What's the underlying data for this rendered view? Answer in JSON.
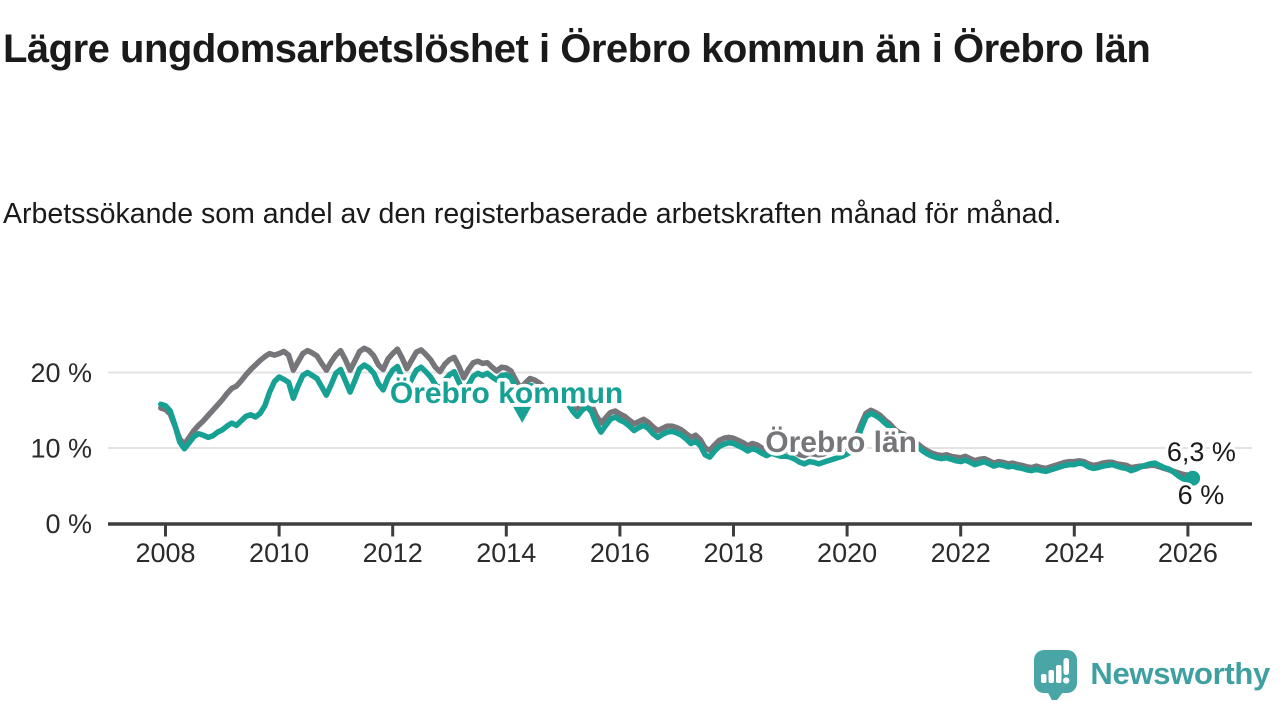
{
  "header": {
    "title": "Lägre ungdomsarbetslöshet i Örebro kommun än i Örebro län",
    "subtitle": "Arbetssökande som andel av den registerbaserade arbetskraften månad för månad."
  },
  "footer": {
    "brand": "Newsworthy",
    "brand_color": "#3fa0a1",
    "logo_color": "#4aa6a6"
  },
  "chart_data": {
    "type": "line",
    "title": "Lägre ungdomsarbetslöshet i Örebro kommun än i Örebro län",
    "xlabel": "",
    "ylabel": "Arbetssökande som andel av den registerbaserade arbetskraften",
    "grid": "horizontal-only",
    "legend": "inline-labels",
    "xlim": [
      2007.0,
      2027.1
    ],
    "ylim": [
      0,
      26.5
    ],
    "xticks": [
      2008,
      2010,
      2012,
      2014,
      2016,
      2018,
      2020,
      2022,
      2024,
      2026
    ],
    "yticks": [
      {
        "value": 0,
        "label": "0 %"
      },
      {
        "value": 10,
        "label": "10 %"
      },
      {
        "value": 20,
        "label": "20 %"
      }
    ],
    "x_start": 2007.9167,
    "x_step": 0.083333,
    "series": [
      {
        "name": "Örebro län",
        "color": "#76767a",
        "end_dot": false,
        "values": [
          15.3,
          15.1,
          14.5,
          12.9,
          11.2,
          10.5,
          11.4,
          12.3,
          13.0,
          13.6,
          14.3,
          15.0,
          15.7,
          16.4,
          17.2,
          17.9,
          18.2,
          18.9,
          19.7,
          20.4,
          21.0,
          21.6,
          22.1,
          22.5,
          22.3,
          22.5,
          22.8,
          22.3,
          20.3,
          21.4,
          22.5,
          22.9,
          22.6,
          22.2,
          21.2,
          20.3,
          21.4,
          22.3,
          22.9,
          21.7,
          20.3,
          21.5,
          22.8,
          23.2,
          22.9,
          22.2,
          21.0,
          20.4,
          21.8,
          22.5,
          23.1,
          21.9,
          20.5,
          21.6,
          22.7,
          23.0,
          22.4,
          21.7,
          20.7,
          20.1,
          21.1,
          21.7,
          22.0,
          20.8,
          19.3,
          20.4,
          21.3,
          21.5,
          21.2,
          21.3,
          20.7,
          20.2,
          20.7,
          20.6,
          20.2,
          19.0,
          17.9,
          18.6,
          19.2,
          19.0,
          18.6,
          18.1,
          17.7,
          17.3,
          17.4,
          17.1,
          16.7,
          15.8,
          15.2,
          15.9,
          16.3,
          15.7,
          14.3,
          13.3,
          14.0,
          14.7,
          14.9,
          14.5,
          14.2,
          13.7,
          13.2,
          13.5,
          13.8,
          13.4,
          12.8,
          12.3,
          12.6,
          12.9,
          12.9,
          12.7,
          12.4,
          11.9,
          11.4,
          11.7,
          11.1,
          10.0,
          9.7,
          10.4,
          11.0,
          11.3,
          11.4,
          11.3,
          11.0,
          10.7,
          10.3,
          10.6,
          10.4,
          10.0,
          9.7,
          10.0,
          9.8,
          9.7,
          9.7,
          9.6,
          9.4,
          9.1,
          9.0,
          9.3,
          9.2,
          9.1,
          9.2,
          9.4,
          9.5,
          9.7,
          9.9,
          10.1,
          10.5,
          11.6,
          13.2,
          14.6,
          15.0,
          14.7,
          14.3,
          13.7,
          13.2,
          12.5,
          12.0,
          11.8,
          11.4,
          10.9,
          10.5,
          10.0,
          9.6,
          9.3,
          9.1,
          9.0,
          9.1,
          8.9,
          8.8,
          8.7,
          8.9,
          8.6,
          8.3,
          8.5,
          8.6,
          8.3,
          8.0,
          8.2,
          8.1,
          7.9,
          8.0,
          7.8,
          7.7,
          7.5,
          7.4,
          7.6,
          7.4,
          7.3,
          7.5,
          7.7,
          7.9,
          8.1,
          8.2,
          8.2,
          8.3,
          8.2,
          7.9,
          7.7,
          7.8,
          8.0,
          8.1,
          8.1,
          7.9,
          7.8,
          7.7,
          7.4,
          7.5,
          7.6,
          7.6,
          7.7,
          7.7,
          7.5,
          7.3,
          7.1,
          6.9,
          6.7,
          6.5,
          6.4,
          6.3
        ]
      },
      {
        "name": "Örebro kommun",
        "color": "#17a194",
        "end_dot": true,
        "values": [
          15.8,
          15.6,
          14.9,
          13.0,
          10.8,
          9.9,
          10.7,
          11.5,
          11.9,
          11.7,
          11.4,
          11.6,
          12.1,
          12.4,
          12.9,
          13.3,
          13.0,
          13.6,
          14.2,
          14.4,
          14.1,
          14.6,
          15.6,
          17.4,
          18.8,
          19.4,
          19.1,
          18.7,
          16.6,
          18.2,
          19.6,
          20.0,
          19.6,
          19.2,
          18.1,
          17.0,
          18.4,
          19.9,
          20.4,
          18.9,
          17.4,
          18.9,
          20.5,
          21.0,
          20.6,
          19.9,
          18.5,
          17.7,
          19.3,
          20.3,
          20.8,
          19.3,
          17.9,
          19.1,
          20.3,
          20.7,
          20.1,
          19.4,
          18.4,
          17.8,
          19.0,
          19.7,
          20.1,
          18.7,
          16.8,
          18.3,
          19.5,
          19.9,
          19.6,
          19.9,
          19.4,
          19.0,
          19.6,
          19.7,
          19.3,
          18.0,
          16.9,
          17.6,
          18.3,
          18.1,
          17.7,
          17.2,
          16.8,
          16.4,
          16.6,
          16.3,
          15.9,
          14.9,
          14.2,
          15.0,
          15.5,
          14.8,
          13.2,
          12.1,
          13.0,
          13.8,
          14.1,
          13.7,
          13.4,
          12.9,
          12.3,
          12.7,
          13.0,
          12.6,
          11.9,
          11.4,
          11.8,
          12.1,
          12.2,
          12.0,
          11.7,
          11.2,
          10.6,
          10.9,
          10.3,
          9.1,
          8.8,
          9.6,
          10.2,
          10.5,
          10.7,
          10.6,
          10.3,
          10.0,
          9.6,
          9.9,
          9.7,
          9.3,
          9.0,
          9.3,
          9.1,
          8.9,
          8.9,
          8.8,
          8.5,
          8.1,
          7.9,
          8.2,
          8.1,
          7.9,
          8.1,
          8.3,
          8.5,
          8.7,
          8.9,
          9.2,
          9.6,
          10.8,
          12.6,
          14.1,
          14.6,
          14.3,
          13.9,
          13.3,
          12.8,
          12.1,
          11.6,
          11.4,
          11.0,
          10.5,
          10.1,
          9.6,
          9.2,
          8.9,
          8.7,
          8.6,
          8.7,
          8.5,
          8.3,
          8.2,
          8.4,
          8.1,
          7.8,
          8.0,
          8.2,
          7.9,
          7.6,
          7.8,
          7.7,
          7.5,
          7.6,
          7.4,
          7.3,
          7.1,
          7.0,
          7.2,
          7.0,
          6.9,
          7.1,
          7.3,
          7.5,
          7.7,
          7.8,
          7.8,
          8.0,
          7.9,
          7.5,
          7.3,
          7.4,
          7.6,
          7.7,
          7.8,
          7.6,
          7.4,
          7.3,
          7.0,
          7.2,
          7.5,
          7.7,
          7.9,
          8.0,
          7.7,
          7.4,
          7.2,
          6.8,
          6.3,
          5.9,
          5.8,
          6.0
        ]
      }
    ],
    "annotations": {
      "series_labels": [
        {
          "text": "Örebro kommun",
          "color": "#17a194",
          "x": 2011.95,
          "value": 15.95,
          "marker": {
            "shape": "triangle-down",
            "x": 2014.28,
            "value": 15.45
          }
        },
        {
          "text": "Örebro län",
          "color": "#76767a",
          "x": 2018.56,
          "value": 9.5
        }
      ],
      "end_labels": [
        {
          "text": "6,3 %",
          "x": 2025.63,
          "value": 8.3
        },
        {
          "text": "6 %",
          "x": 2025.82,
          "value": 2.6
        }
      ]
    }
  }
}
